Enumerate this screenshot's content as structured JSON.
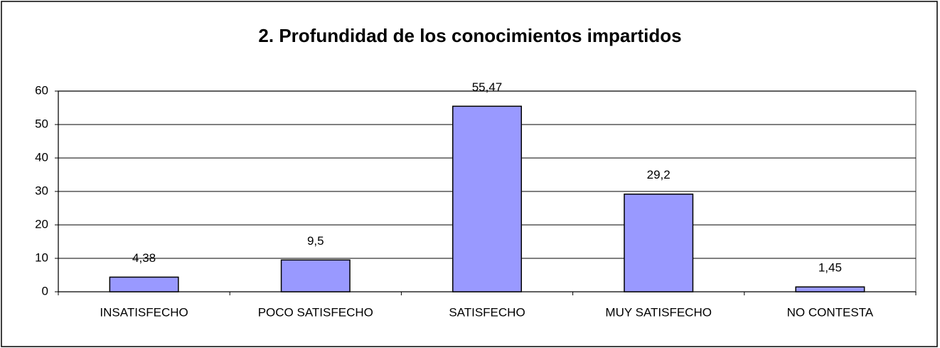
{
  "chart_data": {
    "type": "bar",
    "title": "2. Profundidad de los conocimientos impartidos",
    "categories": [
      "INSATISFECHO",
      "POCO SATISFECHO",
      "SATISFECHO",
      "MUY SATISFECHO",
      "NO CONTESTA"
    ],
    "values": [
      4.38,
      9.5,
      55.47,
      29.2,
      1.45
    ],
    "value_labels": [
      "4,38",
      "9,5",
      "55,47",
      "29,2",
      "1,45"
    ],
    "color": "#9999ff",
    "ylim": [
      0,
      60
    ],
    "yticks": [
      0,
      10,
      20,
      30,
      40,
      50,
      60
    ],
    "grid": true
  }
}
